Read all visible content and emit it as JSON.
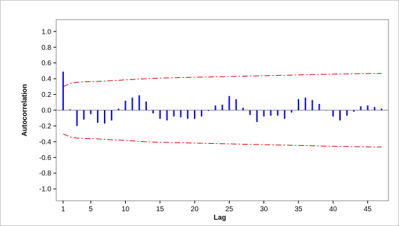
{
  "chart_data": {
    "type": "bar",
    "title": "",
    "xlabel": "Lag",
    "ylabel": "Autocorrelation",
    "xlim": [
      0,
      48
    ],
    "ylim": [
      -1.15,
      1.15
    ],
    "x_ticks": [
      1,
      5,
      10,
      15,
      20,
      25,
      30,
      35,
      40,
      45
    ],
    "y_ticks": [
      -1.0,
      -0.8,
      -0.6,
      -0.4,
      -0.2,
      0.0,
      0.2,
      0.4,
      0.6,
      0.8,
      1.0
    ],
    "y_tick_labels": [
      "-1.0",
      "-0.8",
      "-0.6",
      "-0.4",
      "-0.2",
      "0.0",
      "0.2",
      "0.4",
      "0.6",
      "0.8",
      "1.0"
    ],
    "grid": false,
    "colors": {
      "bars": "#0000ff",
      "limits": "#cc0000",
      "zero_line": "#808080"
    },
    "series": [
      {
        "x": [
          1,
          2,
          3,
          4,
          5,
          6,
          7,
          8,
          9,
          10,
          11,
          12,
          13,
          14,
          15,
          16,
          17,
          18,
          19,
          20,
          21,
          22,
          23,
          24,
          25,
          26,
          27,
          28,
          29,
          30,
          31,
          32,
          33,
          34,
          35,
          36,
          37,
          38,
          39,
          40,
          41,
          42,
          43,
          44,
          45,
          46,
          47
        ],
        "values": [
          0.49,
          0.01,
          -0.2,
          -0.12,
          -0.05,
          -0.16,
          -0.17,
          -0.13,
          0.02,
          0.12,
          0.16,
          0.19,
          0.11,
          -0.04,
          -0.11,
          -0.13,
          -0.08,
          -0.09,
          -0.11,
          -0.11,
          -0.08,
          -0.01,
          0.06,
          0.07,
          0.18,
          0.14,
          0.03,
          -0.06,
          -0.15,
          -0.08,
          -0.07,
          -0.07,
          -0.11,
          -0.03,
          0.14,
          0.16,
          0.13,
          0.08,
          0.0,
          -0.08,
          -0.13,
          -0.07,
          -0.02,
          0.05,
          0.06,
          0.04,
          0.02
        ]
      }
    ],
    "confidence_limits": {
      "upper": [
        0.3,
        0.34,
        0.355,
        0.36,
        0.362,
        0.365,
        0.37,
        0.375,
        0.38,
        0.385,
        0.39,
        0.395,
        0.4,
        0.405,
        0.408,
        0.41,
        0.412,
        0.414,
        0.416,
        0.418,
        0.42,
        0.422,
        0.424,
        0.426,
        0.428,
        0.43,
        0.432,
        0.434,
        0.436,
        0.438,
        0.44,
        0.442,
        0.444,
        0.446,
        0.448,
        0.45,
        0.452,
        0.454,
        0.456,
        0.458,
        0.46,
        0.462,
        0.463,
        0.464,
        0.465,
        0.466,
        0.467
      ],
      "lower": [
        -0.3,
        -0.34,
        -0.355,
        -0.36,
        -0.362,
        -0.365,
        -0.37,
        -0.375,
        -0.38,
        -0.385,
        -0.39,
        -0.395,
        -0.4,
        -0.405,
        -0.408,
        -0.41,
        -0.412,
        -0.414,
        -0.416,
        -0.418,
        -0.42,
        -0.422,
        -0.424,
        -0.426,
        -0.428,
        -0.43,
        -0.432,
        -0.434,
        -0.436,
        -0.438,
        -0.44,
        -0.442,
        -0.444,
        -0.446,
        -0.448,
        -0.45,
        -0.452,
        -0.454,
        -0.456,
        -0.458,
        -0.46,
        -0.462,
        -0.463,
        -0.464,
        -0.465,
        -0.466,
        -0.467
      ]
    }
  }
}
